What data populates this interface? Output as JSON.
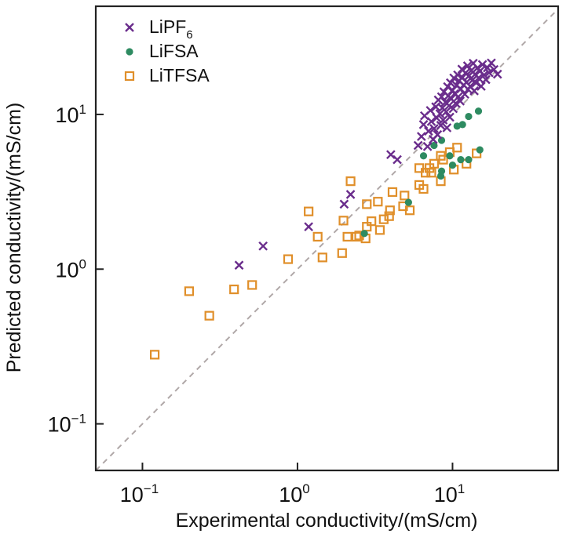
{
  "chart_data": {
    "type": "scatter",
    "title": "",
    "xlabel": "Experimental conductivity/(mS/cm)",
    "ylabel": "Predicted conductivity/(mS/cm)",
    "xscale": "log",
    "yscale": "log",
    "xlim": [
      0.05,
      48
    ],
    "ylim": [
      0.05,
      50
    ],
    "xticks": [
      {
        "value": 0.1,
        "base": "10",
        "exp": "−1"
      },
      {
        "value": 1,
        "base": "10",
        "exp": "0"
      },
      {
        "value": 10,
        "base": "10",
        "exp": "1"
      }
    ],
    "yticks": [
      {
        "value": 0.1,
        "base": "10",
        "exp": "−1"
      },
      {
        "value": 1,
        "base": "10",
        "exp": "0"
      },
      {
        "value": 10,
        "base": "10",
        "exp": "1"
      }
    ],
    "grid": false,
    "legend_position": "top-left",
    "reference_line": {
      "type": "y=x",
      "style": "dashed",
      "color": "#b0a8a8"
    },
    "series": [
      {
        "name": "LiPF",
        "name_subscript": "6",
        "marker": "x",
        "color": "#6a2d8c",
        "points": [
          [
            0.42,
            1.06
          ],
          [
            0.6,
            1.41
          ],
          [
            1.18,
            1.88
          ],
          [
            2.0,
            2.63
          ],
          [
            2.2,
            3.04
          ],
          [
            4.0,
            5.5
          ],
          [
            4.4,
            5.1
          ],
          [
            6.0,
            6.3
          ],
          [
            6.3,
            7.2
          ],
          [
            6.5,
            8.6
          ],
          [
            6.6,
            9.8
          ],
          [
            6.9,
            6.2
          ],
          [
            7.0,
            7.8
          ],
          [
            7.2,
            10.6
          ],
          [
            7.3,
            9.0
          ],
          [
            7.5,
            6.9
          ],
          [
            7.6,
            8.1
          ],
          [
            7.8,
            11.2
          ],
          [
            7.9,
            9.5
          ],
          [
            8.0,
            7.4
          ],
          [
            8.1,
            12.4
          ],
          [
            8.3,
            10.1
          ],
          [
            8.4,
            8.5
          ],
          [
            8.5,
            13.0
          ],
          [
            8.6,
            11.0
          ],
          [
            8.7,
            9.2
          ],
          [
            8.8,
            14.0
          ],
          [
            9.0,
            12.0
          ],
          [
            9.1,
            10.4
          ],
          [
            9.2,
            8.2
          ],
          [
            9.3,
            15.1
          ],
          [
            9.4,
            13.2
          ],
          [
            9.5,
            11.4
          ],
          [
            9.6,
            9.6
          ],
          [
            9.7,
            16.0
          ],
          [
            9.8,
            12.6
          ],
          [
            10.0,
            14.3
          ],
          [
            10.1,
            10.9
          ],
          [
            10.2,
            17.2
          ],
          [
            10.3,
            13.6
          ],
          [
            10.5,
            11.8
          ],
          [
            10.6,
            15.4
          ],
          [
            10.8,
            18.0
          ],
          [
            10.9,
            13.0
          ],
          [
            11.0,
            16.5
          ],
          [
            11.2,
            12.2
          ],
          [
            11.3,
            14.6
          ],
          [
            11.5,
            19.6
          ],
          [
            11.6,
            17.3
          ],
          [
            11.8,
            15.5
          ],
          [
            12.0,
            13.5
          ],
          [
            12.1,
            18.5
          ],
          [
            12.3,
            16.1
          ],
          [
            12.5,
            20.6
          ],
          [
            12.6,
            14.5
          ],
          [
            12.8,
            17.8
          ],
          [
            13.0,
            15.2
          ],
          [
            13.2,
            19.2
          ],
          [
            13.4,
            16.6
          ],
          [
            13.6,
            21.4
          ],
          [
            13.8,
            14.2
          ],
          [
            14.0,
            18.2
          ],
          [
            14.2,
            16.0
          ],
          [
            14.5,
            20.0
          ],
          [
            14.7,
            17.2
          ],
          [
            15.0,
            19.0
          ],
          [
            15.3,
            15.2
          ],
          [
            15.6,
            21.0
          ],
          [
            16.0,
            18.0
          ],
          [
            16.4,
            16.8
          ],
          [
            16.8,
            20.0
          ],
          [
            17.2,
            18.6
          ],
          [
            17.8,
            21.5
          ],
          [
            18.5,
            19.5
          ],
          [
            19.5,
            18.2
          ]
        ]
      },
      {
        "name": "LiFSA",
        "marker": "circle",
        "color": "#2e8b61",
        "points": [
          [
            2.7,
            1.7
          ],
          [
            5.2,
            2.7
          ],
          [
            6.5,
            5.4
          ],
          [
            7.6,
            6.3
          ],
          [
            8.5,
            6.8
          ],
          [
            8.4,
            4.0
          ],
          [
            8.5,
            4.3
          ],
          [
            9.6,
            5.4
          ],
          [
            10.0,
            4.7
          ],
          [
            11.3,
            5.1
          ],
          [
            12.7,
            5.1
          ],
          [
            15.0,
            5.9
          ],
          [
            10.7,
            8.4
          ],
          [
            11.6,
            8.6
          ],
          [
            12.7,
            9.7
          ],
          [
            14.7,
            10.5
          ]
        ]
      },
      {
        "name": "LiTFSA",
        "marker": "square",
        "color": "#e08f2a",
        "points": [
          [
            0.12,
            0.28
          ],
          [
            0.2,
            0.72
          ],
          [
            0.27,
            0.5
          ],
          [
            0.39,
            0.74
          ],
          [
            0.51,
            0.79
          ],
          [
            0.87,
            1.16
          ],
          [
            1.18,
            2.36
          ],
          [
            1.35,
            1.62
          ],
          [
            1.45,
            1.19
          ],
          [
            1.94,
            1.27
          ],
          [
            1.98,
            2.06
          ],
          [
            2.1,
            1.62
          ],
          [
            2.2,
            3.7
          ],
          [
            2.4,
            1.62
          ],
          [
            2.5,
            1.65
          ],
          [
            2.75,
            1.58
          ],
          [
            2.8,
            2.63
          ],
          [
            2.8,
            1.88
          ],
          [
            3.0,
            2.04
          ],
          [
            3.3,
            2.73
          ],
          [
            3.4,
            1.79
          ],
          [
            3.6,
            2.1
          ],
          [
            3.9,
            2.2
          ],
          [
            3.95,
            2.4
          ],
          [
            4.1,
            3.15
          ],
          [
            4.8,
            2.55
          ],
          [
            4.9,
            2.99
          ],
          [
            5.3,
            2.4
          ],
          [
            6.1,
            4.5
          ],
          [
            6.1,
            3.5
          ],
          [
            6.5,
            3.3
          ],
          [
            6.7,
            4.2
          ],
          [
            7.1,
            4.5
          ],
          [
            7.3,
            4.2
          ],
          [
            7.6,
            4.8
          ],
          [
            8.4,
            5.4
          ],
          [
            8.4,
            3.7
          ],
          [
            8.7,
            5.1
          ],
          [
            9.6,
            5.7
          ],
          [
            10.2,
            4.4
          ],
          [
            10.7,
            6.1
          ],
          [
            12.3,
            4.8
          ],
          [
            14.3,
            5.6
          ]
        ]
      }
    ]
  }
}
